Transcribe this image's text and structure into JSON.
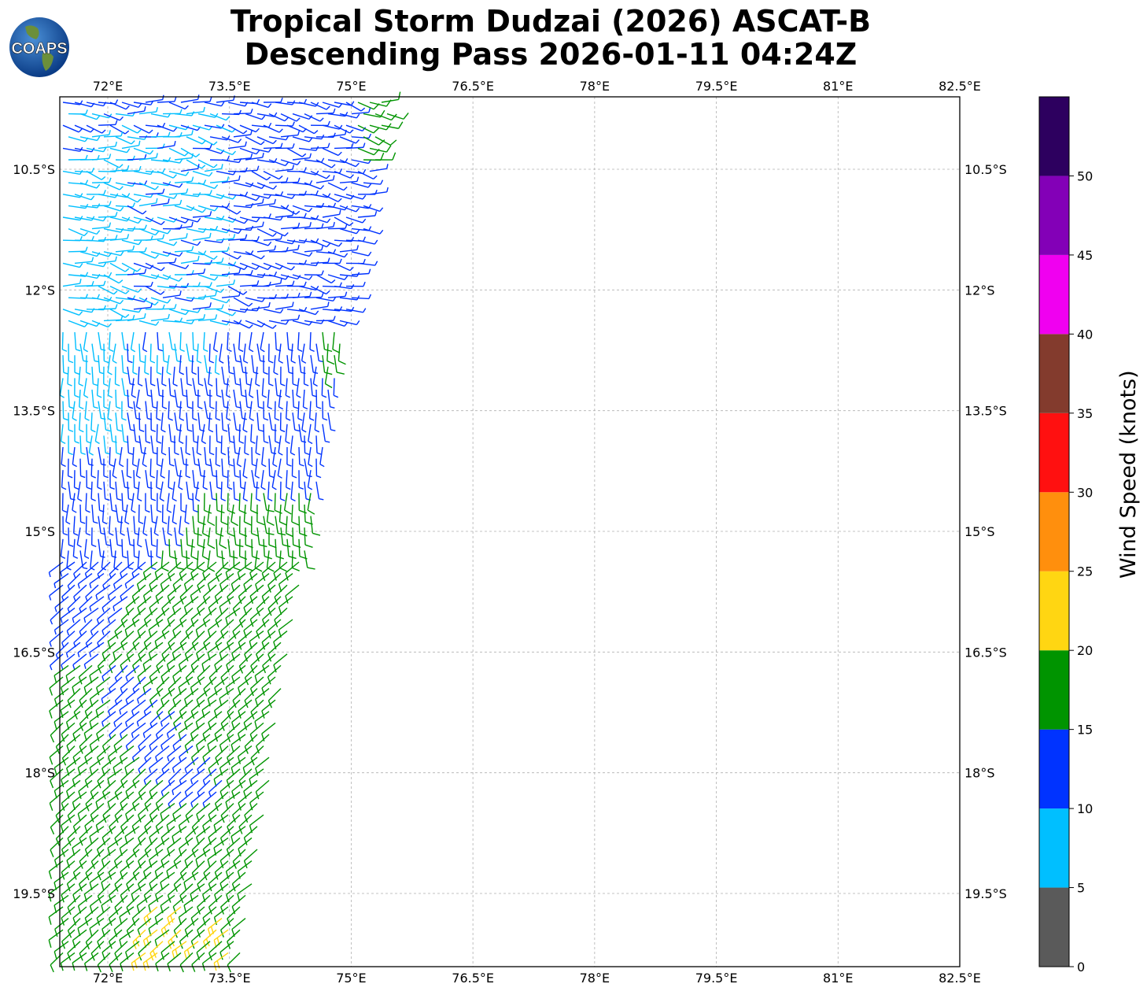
{
  "title": {
    "line1": "Tropical Storm Dudzai (2026) ASCAT-B",
    "line2": "Descending Pass 2026-01-11 04:24Z"
  },
  "logo": {
    "text": "COAPS",
    "icon": "globe-icon"
  },
  "map": {
    "lon_ticks": [
      "72°E",
      "73.5°E",
      "75°E",
      "76.5°E",
      "78°E",
      "79.5°E",
      "81°E",
      "82.5°E"
    ],
    "lat_ticks": [
      "10.5°S",
      "12°S",
      "13.5°S",
      "15°S",
      "16.5°S",
      "18°S",
      "19.5°S"
    ],
    "lon_range": [
      71.4,
      82.6
    ],
    "lat_range": [
      -20.6,
      -9.8
    ],
    "gridlines": true,
    "barb_note": "wind barbs colored by speed; swath covers western portion"
  },
  "colorbar": {
    "label": "Wind Speed (knots)",
    "ticks": [
      "0",
      "5",
      "10",
      "15",
      "20",
      "25",
      "30",
      "35",
      "40",
      "45",
      "50"
    ],
    "bins": [
      {
        "from": 0,
        "to": 5,
        "color": "#5a5a5a"
      },
      {
        "from": 5,
        "to": 10,
        "color": "#00bfff"
      },
      {
        "from": 10,
        "to": 15,
        "color": "#0033ff"
      },
      {
        "from": 15,
        "to": 20,
        "color": "#009400"
      },
      {
        "from": 20,
        "to": 25,
        "color": "#ffd612"
      },
      {
        "from": 25,
        "to": 30,
        "color": "#ff8f0d"
      },
      {
        "from": 30,
        "to": 35,
        "color": "#ff1010"
      },
      {
        "from": 35,
        "to": 40,
        "color": "#833b2d"
      },
      {
        "from": 40,
        "to": 45,
        "color": "#f000f0"
      },
      {
        "from": 45,
        "to": 50,
        "color": "#8300b7"
      },
      {
        "from": 50,
        "to": 55,
        "color": "#2d005f"
      }
    ]
  }
}
